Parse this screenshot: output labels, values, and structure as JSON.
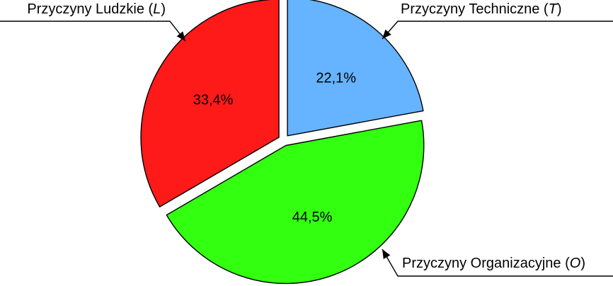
{
  "chart_data": {
    "type": "pie",
    "exploded": true,
    "slices": [
      {
        "name": "Przyczyny Techniczne",
        "symbol": "T",
        "value": 22.1,
        "value_label": "22,1%",
        "color": "#66b3ff"
      },
      {
        "name": "Przyczyny Organizacyjne",
        "symbol": "O",
        "value": 44.5,
        "value_label": "44,5%",
        "color": "#33ff11"
      },
      {
        "name": "Przyczyny Ludzkie",
        "symbol": "L",
        "value": 33.4,
        "value_label": "33,4%",
        "color": "#ff1a1a"
      }
    ]
  }
}
